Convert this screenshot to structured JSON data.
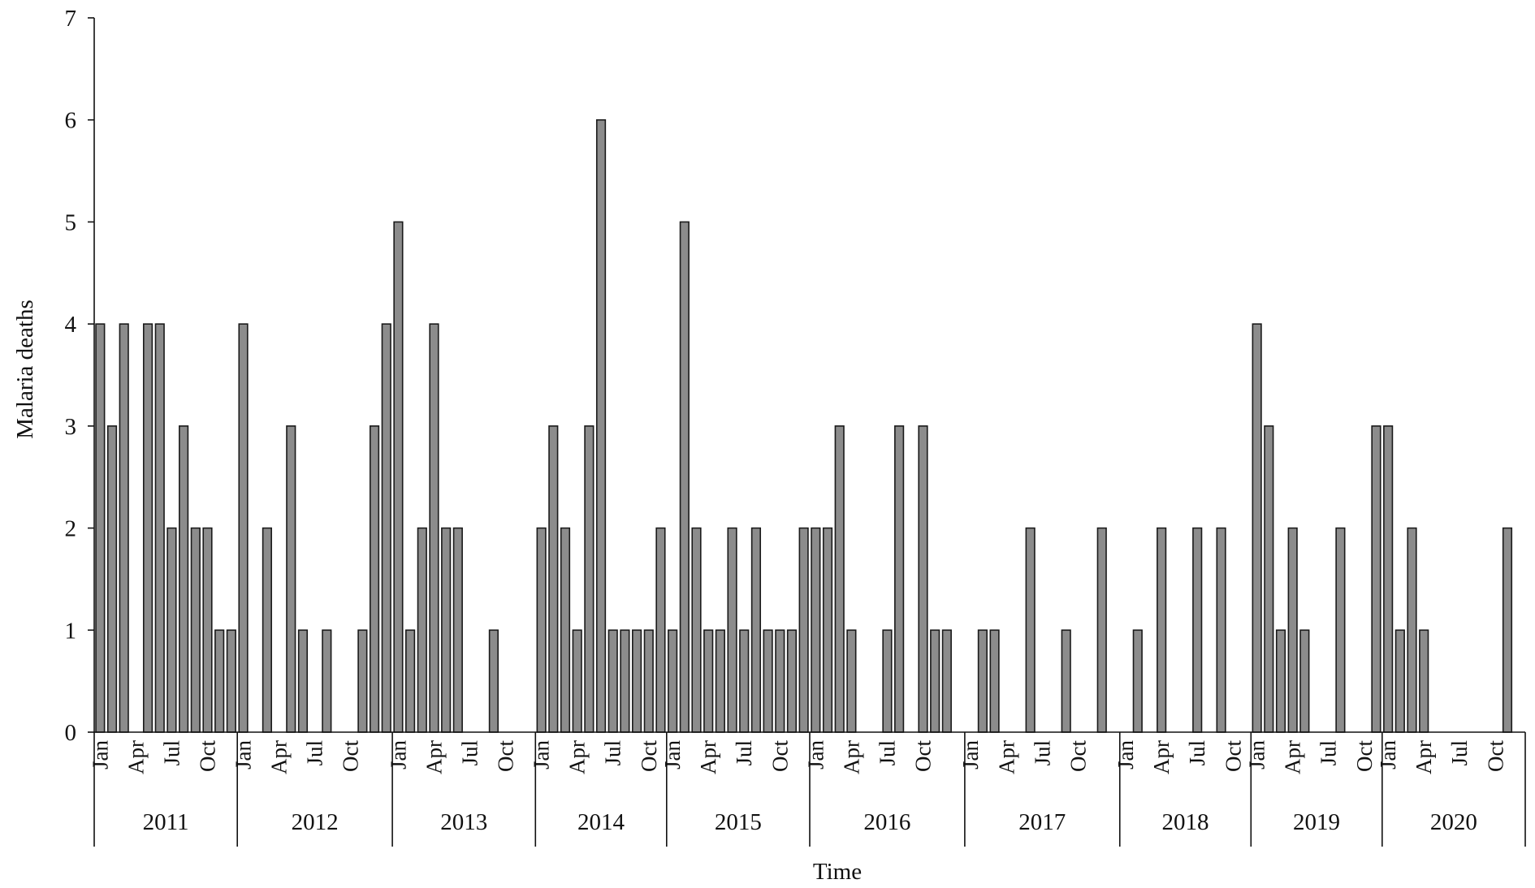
{
  "chart_data": {
    "type": "bar",
    "title": "",
    "xlabel": "Time",
    "ylabel": "Malaria deaths",
    "ylim": [
      0,
      7
    ],
    "yticks": [
      0,
      1,
      2,
      3,
      4,
      5,
      6,
      7
    ],
    "grid": false,
    "legend": "none",
    "bar_color": "#8c8c8c",
    "bar_edge_color": "#1a1a1a",
    "month_tick_labels": [
      "Jan",
      "Apr",
      "Jul",
      "Oct"
    ],
    "years": [
      {
        "year": "2011",
        "months": 12,
        "values": [
          4,
          3,
          4,
          0,
          4,
          4,
          2,
          3,
          2,
          2,
          1,
          1
        ]
      },
      {
        "year": "2012",
        "months": 13,
        "values": [
          4,
          0,
          2,
          0,
          3,
          1,
          0,
          1,
          0,
          0,
          1,
          3,
          4
        ]
      },
      {
        "year": "2013",
        "months": 12,
        "values": [
          5,
          1,
          2,
          4,
          2,
          2,
          0,
          0,
          1,
          0,
          0,
          0
        ]
      },
      {
        "year": "2014",
        "months": 11,
        "values": [
          2,
          3,
          2,
          1,
          3,
          6,
          1,
          1,
          1,
          1,
          2
        ]
      },
      {
        "year": "2015",
        "months": 12,
        "values": [
          1,
          5,
          2,
          1,
          1,
          2,
          1,
          2,
          1,
          1,
          1,
          2
        ]
      },
      {
        "year": "2016",
        "months": 13,
        "values": [
          2,
          2,
          3,
          1,
          0,
          0,
          1,
          3,
          0,
          3,
          1,
          1,
          0
        ]
      },
      {
        "year": "2017",
        "months": 13,
        "values": [
          0,
          1,
          1,
          0,
          0,
          2,
          0,
          0,
          1,
          0,
          0,
          2,
          0
        ]
      },
      {
        "year": "2018",
        "months": 11,
        "values": [
          0,
          1,
          0,
          2,
          0,
          0,
          2,
          0,
          2,
          0,
          0
        ]
      },
      {
        "year": "2019",
        "months": 11,
        "values": [
          4,
          3,
          1,
          2,
          1,
          0,
          0,
          2,
          0,
          0,
          3
        ]
      },
      {
        "year": "2020",
        "months": 12,
        "values": [
          3,
          1,
          2,
          1,
          0,
          0,
          0,
          0,
          0,
          0,
          2,
          0
        ]
      }
    ]
  }
}
